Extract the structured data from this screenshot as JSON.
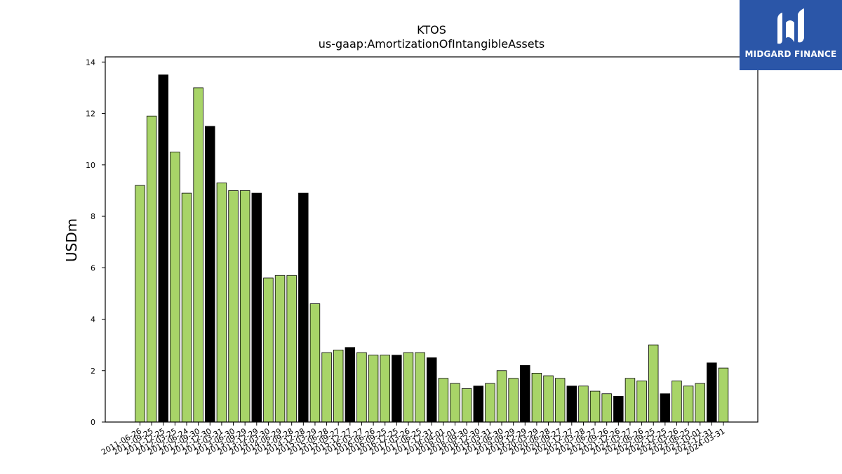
{
  "chart_data": {
    "type": "bar",
    "title": "KTOS",
    "subtitle": "us-gaap:AmortizationOfIntangibleAssets",
    "xlabel": "",
    "ylabel": "USDm",
    "ylim": [
      0,
      14.2
    ],
    "yticks": [
      0,
      2,
      4,
      6,
      8,
      10,
      12,
      14
    ],
    "grid": false,
    "colors": {
      "quarter": "#a8d468",
      "annual": "#000000",
      "edge": "#000000"
    },
    "categories": [
      "2011-06-26",
      "2011-09-25",
      "2011-12-25",
      "2012-03-25",
      "2012-06-24",
      "2012-09-30",
      "2012-12-30",
      "2013-03-31",
      "2013-06-30",
      "2013-09-29",
      "2013-12-29",
      "2014-03-30",
      "2014-06-29",
      "2014-09-28",
      "2014-12-28",
      "2015-03-29",
      "2015-06-28",
      "2015-09-27",
      "2015-12-27",
      "2016-03-27",
      "2016-06-26",
      "2016-09-25",
      "2016-12-25",
      "2017-03-26",
      "2017-06-25",
      "2017-12-31",
      "2018-04-01",
      "2018-07-01",
      "2018-09-30",
      "2018-12-30",
      "2019-03-31",
      "2019-06-30",
      "2019-09-29",
      "2019-12-29",
      "2020-03-29",
      "2020-06-28",
      "2020-09-27",
      "2020-12-27",
      "2021-03-28",
      "2021-06-27",
      "2021-09-26",
      "2021-12-26",
      "2022-03-27",
      "2022-06-26",
      "2022-09-25",
      "2022-12-25",
      "2023-03-26",
      "2023-06-25",
      "2023-10-01",
      "2023-12-31",
      "2024-03-31"
    ],
    "values": [
      9.2,
      11.9,
      13.5,
      10.5,
      8.9,
      13.0,
      11.5,
      9.3,
      9.0,
      9.0,
      8.9,
      5.6,
      5.7,
      5.7,
      8.9,
      4.6,
      2.7,
      2.8,
      2.9,
      2.7,
      2.6,
      2.6,
      2.6,
      2.7,
      2.7,
      2.5,
      1.7,
      1.5,
      1.3,
      1.4,
      1.5,
      2.0,
      1.7,
      2.2,
      1.9,
      1.8,
      1.7,
      1.4,
      1.4,
      1.2,
      1.1,
      1.0,
      1.7,
      1.6,
      3.0,
      1.1,
      1.6,
      1.4,
      1.5,
      2.3,
      2.1
    ],
    "annual": [
      false,
      false,
      true,
      false,
      false,
      false,
      true,
      false,
      false,
      false,
      true,
      false,
      false,
      false,
      true,
      false,
      false,
      false,
      true,
      false,
      false,
      false,
      true,
      false,
      false,
      true,
      false,
      false,
      false,
      true,
      false,
      false,
      false,
      true,
      false,
      false,
      false,
      true,
      false,
      false,
      false,
      true,
      false,
      false,
      false,
      true,
      false,
      false,
      false,
      true,
      false
    ]
  },
  "logo": {
    "text": "MIDGARD FINANCE",
    "bg": "#2b56a8"
  }
}
